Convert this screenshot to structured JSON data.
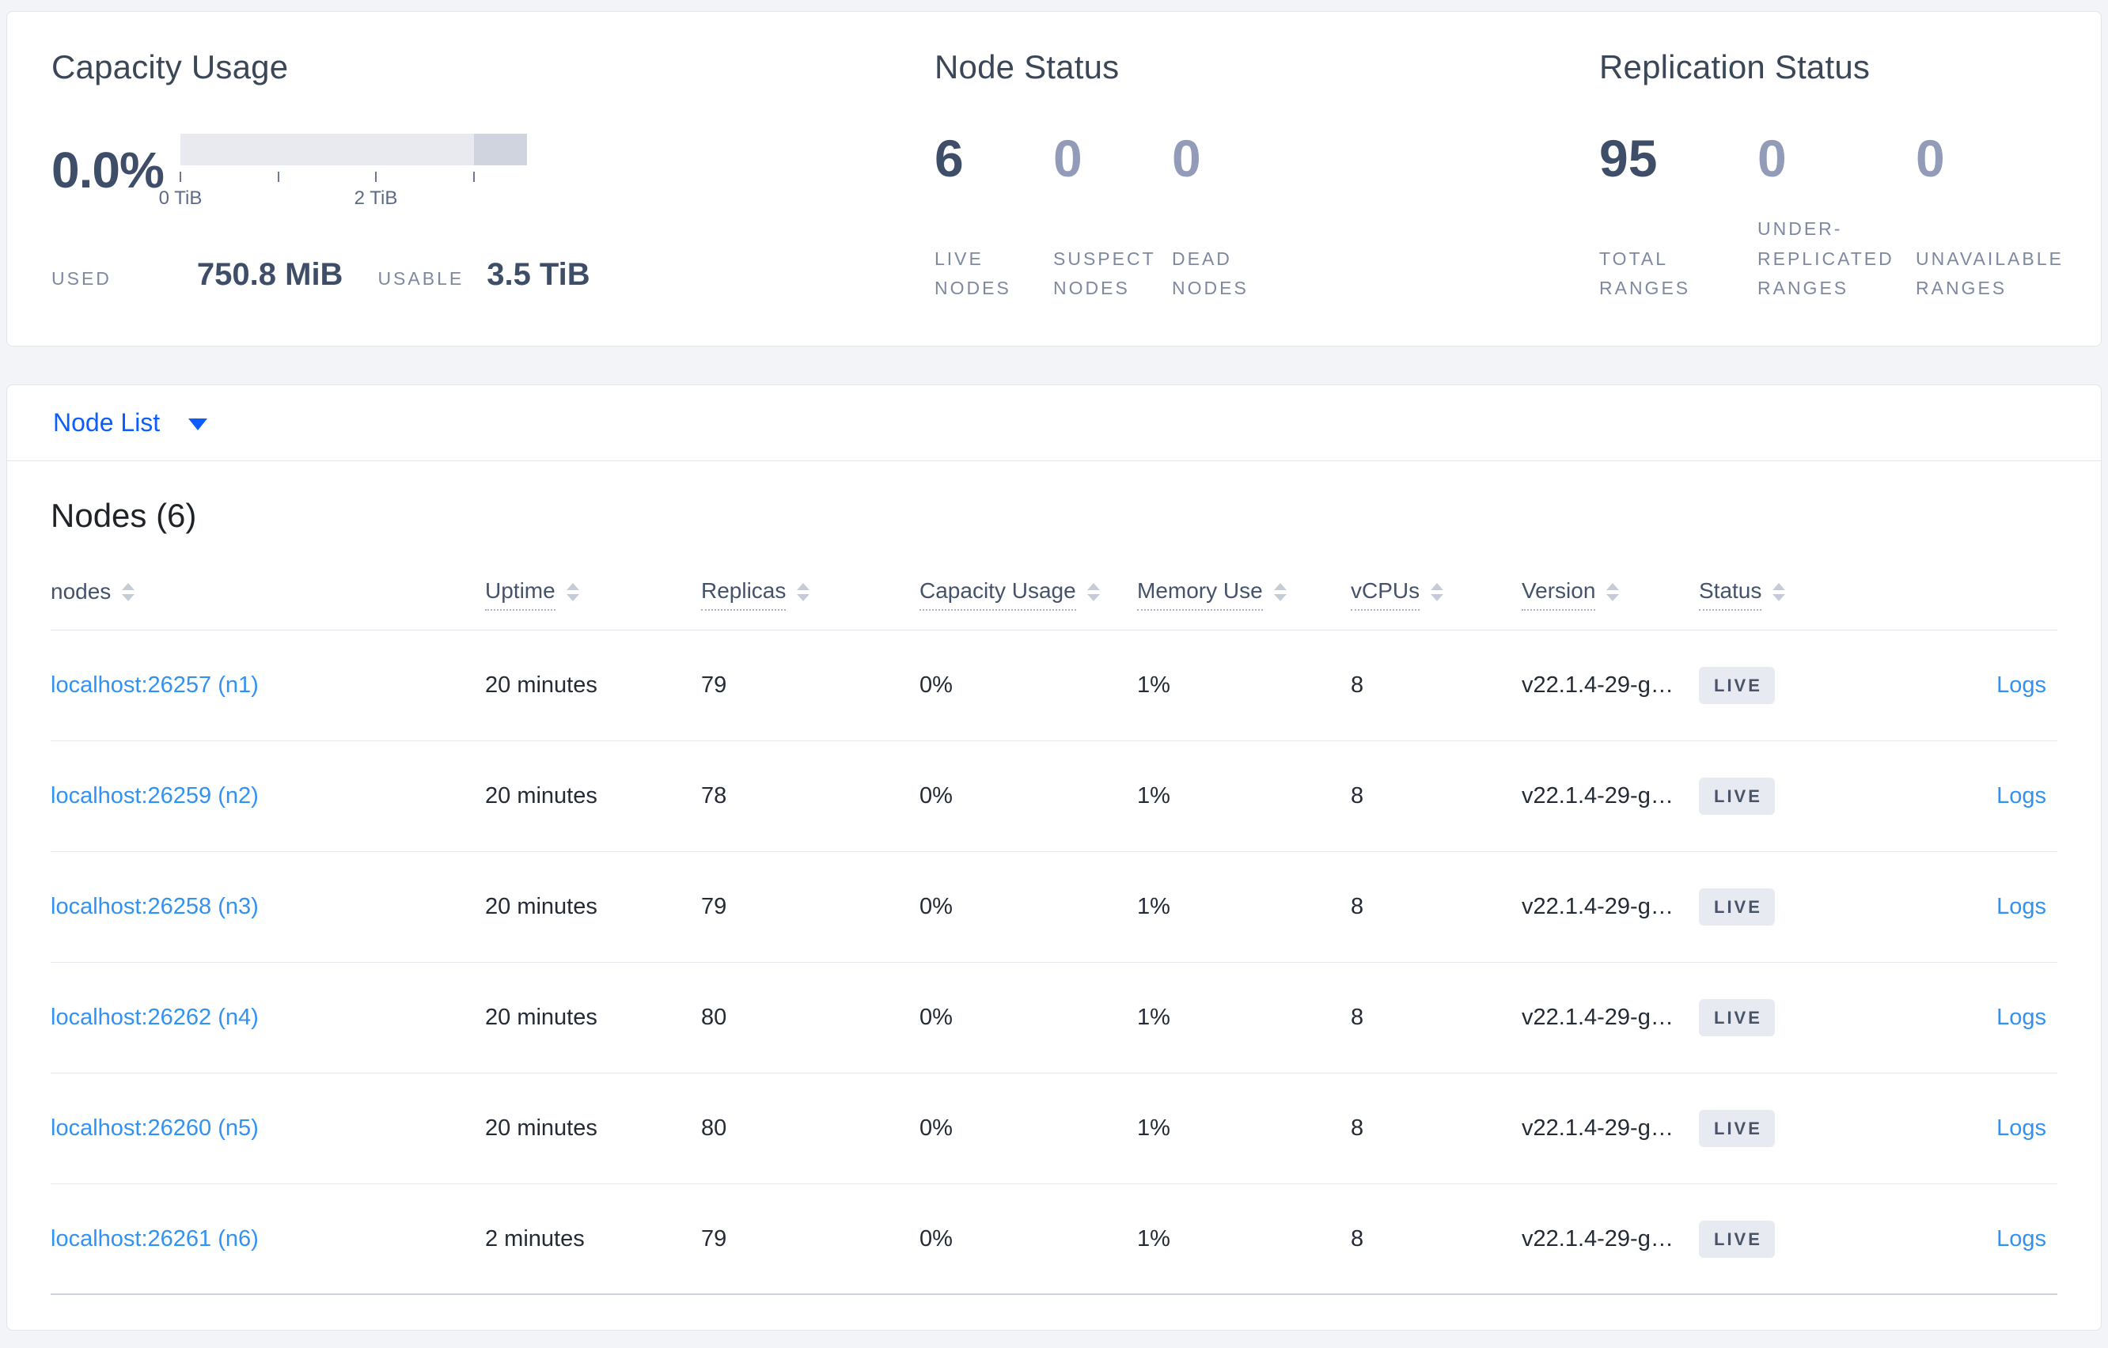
{
  "colors": {
    "page_bg": "#f3f4f8",
    "panel_bg": "#ffffff",
    "panel_border": "#e2e5ec",
    "title": "#3b4757",
    "number_dark": "#3e4e68",
    "number_dim": "#929cb9",
    "label_muted": "#7e889f",
    "cell_text": "#242b36",
    "header_text": "#44536b",
    "link_blue": "#3292f2",
    "accent_blue": "#0b5dff",
    "bar_track": "#e8eaf0",
    "bar_overflow": "#cfd4df",
    "badge_bg": "#e7eaf1",
    "badge_text": "#475469",
    "row_border": "#e7e9ef",
    "row_border_last": "#ccd3e0"
  },
  "overview": {
    "capacity": {
      "title": "Capacity Usage",
      "percent": "0.0%",
      "ticks": [
        {
          "label": "0 TiB"
        },
        {
          "label": ""
        },
        {
          "label": "2 TiB"
        },
        {
          "label": ""
        }
      ],
      "used_label": "USED",
      "used_value": "750.8 MiB",
      "usable_label": "USABLE",
      "usable_value": "3.5 TiB"
    },
    "node_status": {
      "title": "Node Status",
      "stats": [
        {
          "value": "6",
          "label": "LIVE NODES",
          "dim": false
        },
        {
          "value": "0",
          "label": "SUSPECT NODES",
          "dim": true
        },
        {
          "value": "0",
          "label": "DEAD NODES",
          "dim": true
        }
      ]
    },
    "replication": {
      "title": "Replication Status",
      "stats": [
        {
          "value": "95",
          "label": "TOTAL RANGES",
          "dim": false
        },
        {
          "value": "0",
          "label": "UNDER-REPLICATED RANGES",
          "dim": true
        },
        {
          "value": "0",
          "label": "UNAVAILABLE RANGES",
          "dim": true
        }
      ]
    }
  },
  "node_list": {
    "label": "Node List"
  },
  "table": {
    "title": "Nodes (6)",
    "columns": [
      {
        "label": "nodes",
        "underlined": false
      },
      {
        "label": "Uptime",
        "underlined": true
      },
      {
        "label": "Replicas",
        "underlined": true
      },
      {
        "label": "Capacity Usage",
        "underlined": true
      },
      {
        "label": "Memory Use",
        "underlined": true
      },
      {
        "label": "vCPUs",
        "underlined": true
      },
      {
        "label": "Version",
        "underlined": true
      },
      {
        "label": "Status",
        "underlined": true
      }
    ],
    "rows": [
      {
        "address": "localhost:26257 (n1)",
        "uptime": "20 minutes",
        "replicas": "79",
        "capacity_usage": "0%",
        "memory_use": "1%",
        "vcpus": "8",
        "version": "v22.1.4-29-g…",
        "status": "LIVE",
        "logs": "Logs"
      },
      {
        "address": "localhost:26259 (n2)",
        "uptime": "20 minutes",
        "replicas": "78",
        "capacity_usage": "0%",
        "memory_use": "1%",
        "vcpus": "8",
        "version": "v22.1.4-29-g…",
        "status": "LIVE",
        "logs": "Logs"
      },
      {
        "address": "localhost:26258 (n3)",
        "uptime": "20 minutes",
        "replicas": "79",
        "capacity_usage": "0%",
        "memory_use": "1%",
        "vcpus": "8",
        "version": "v22.1.4-29-g…",
        "status": "LIVE",
        "logs": "Logs"
      },
      {
        "address": "localhost:26262 (n4)",
        "uptime": "20 minutes",
        "replicas": "80",
        "capacity_usage": "0%",
        "memory_use": "1%",
        "vcpus": "8",
        "version": "v22.1.4-29-g…",
        "status": "LIVE",
        "logs": "Logs"
      },
      {
        "address": "localhost:26260 (n5)",
        "uptime": "20 minutes",
        "replicas": "80",
        "capacity_usage": "0%",
        "memory_use": "1%",
        "vcpus": "8",
        "version": "v22.1.4-29-g…",
        "status": "LIVE",
        "logs": "Logs"
      },
      {
        "address": "localhost:26261 (n6)",
        "uptime": "2 minutes",
        "replicas": "79",
        "capacity_usage": "0%",
        "memory_use": "1%",
        "vcpus": "8",
        "version": "v22.1.4-29-g…",
        "status": "LIVE",
        "logs": "Logs"
      }
    ]
  }
}
